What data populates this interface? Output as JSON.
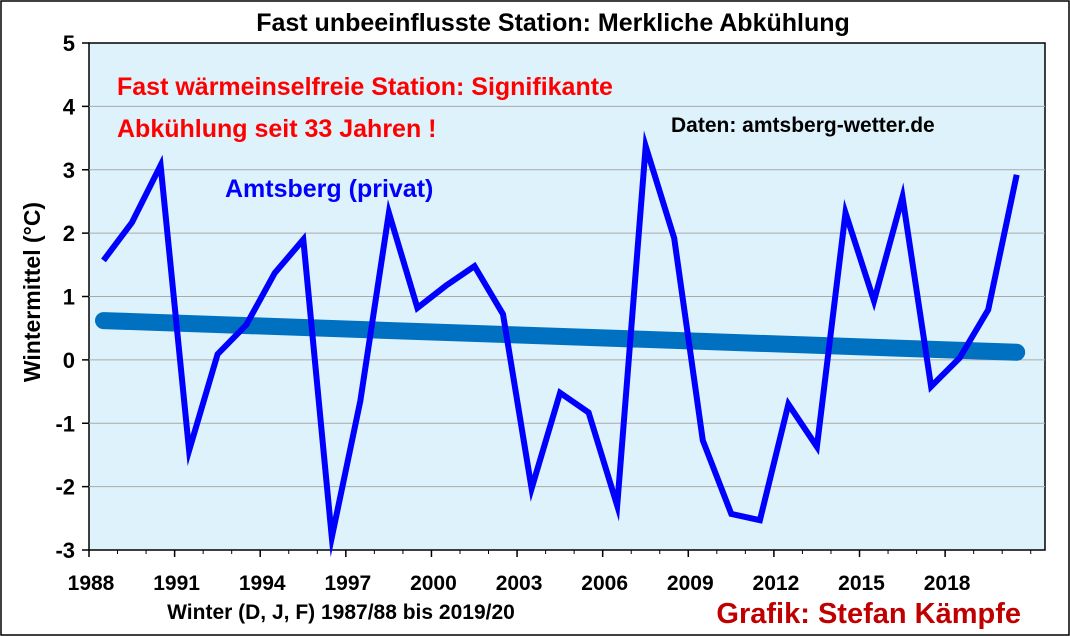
{
  "chart_data": {
    "type": "line",
    "title": "Fast unbeeinflusste Station: Merkliche Abkühlung",
    "xlabel": "Winter (D, J, F) 1987/88 bis 2019/20",
    "ylabel": "Wintermittel (°C)",
    "ylim": [
      -3,
      5
    ],
    "xlim": [
      1988,
      2020
    ],
    "grid": true,
    "y_ticks": [
      "-3",
      "-2",
      "-1",
      "0",
      "1",
      "2",
      "3",
      "4",
      "5"
    ],
    "x_ticks": [
      "1988",
      "1991",
      "1994",
      "1997",
      "2000",
      "2003",
      "2006",
      "2009",
      "2012",
      "2015",
      "2018"
    ],
    "x": [
      1988,
      1989,
      1990,
      1991,
      1992,
      1993,
      1994,
      1995,
      1996,
      1997,
      1998,
      1999,
      2000,
      2001,
      2002,
      2003,
      2004,
      2005,
      2006,
      2007,
      2008,
      2009,
      2010,
      2011,
      2012,
      2013,
      2014,
      2015,
      2016,
      2017,
      2018,
      2019,
      2020
    ],
    "series": [
      {
        "name": "Amtsberg (privat)",
        "color": "#0000ff",
        "values": [
          1.57,
          2.17,
          3.07,
          -1.43,
          0.09,
          0.55,
          1.37,
          1.9,
          -2.8,
          -0.65,
          2.32,
          0.82,
          1.17,
          1.48,
          0.72,
          -2.03,
          -0.52,
          -0.83,
          -2.3,
          3.37,
          1.92,
          -1.27,
          -2.43,
          -2.53,
          -0.7,
          -1.37,
          2.32,
          0.93,
          2.57,
          -0.42,
          0.03,
          0.79,
          2.92
        ]
      },
      {
        "name": "trend",
        "color": "#0070c0",
        "values": [
          0.62,
          0.12
        ],
        "x": [
          1988,
          2020
        ]
      }
    ],
    "annotations": [
      {
        "text": "Amtsberg (privat)",
        "color": "#0000ff"
      },
      {
        "text": "Fast wärmeinselfreie Station: Signifikante",
        "color": "#ff0000"
      },
      {
        "text": "Abkühlung seit 33 Jahren !",
        "color": "#ff0000"
      },
      {
        "text": "Daten: amtsberg-wetter.de",
        "color": "#000000"
      },
      {
        "text": "Grafik: Stefan Kämpfe",
        "color": "#c00000"
      }
    ],
    "colors": {
      "plot_background": "#ddf2fb",
      "line": "#0000ff",
      "trend": "#0070c0",
      "grid": "#aaaaaa"
    }
  }
}
